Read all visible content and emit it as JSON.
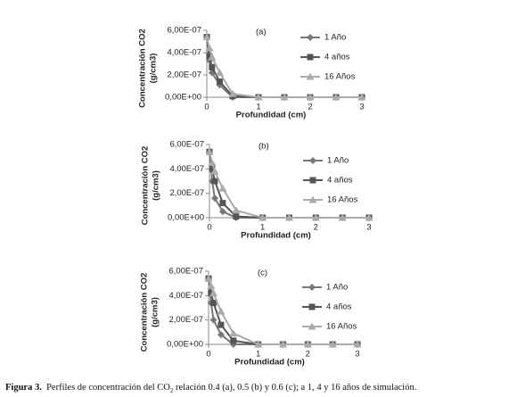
{
  "chart_data": [
    {
      "type": "line",
      "ylabel": "Concentración CO2",
      "ylabel_unit": "(g/cm3)",
      "xlabel": "Profundidad (cm)",
      "annotation": "(a)",
      "x": [
        0,
        0.05,
        0.1,
        0.25,
        0.5,
        1,
        1.5,
        2,
        2.5,
        3
      ],
      "xlim": [
        0,
        3
      ],
      "xticks": [
        0,
        1,
        2,
        3
      ],
      "ylim": [
        0,
        6e-07
      ],
      "yticks": [
        {
          "value": 0,
          "label": "0,00E+00"
        },
        {
          "value": 2e-07,
          "label": "2,00E-07"
        },
        {
          "value": 4e-07,
          "label": "4,00E-07"
        },
        {
          "value": 6e-07,
          "label": "6,00E-07"
        }
      ],
      "series": [
        {
          "name": "1 Año",
          "color": "#777777",
          "marker": "diamond",
          "values": [
            5.4e-07,
            3.3e-07,
            2.2e-07,
            1.1e-07,
            0,
            0,
            0,
            0,
            0,
            0
          ]
        },
        {
          "name": "4 años",
          "color": "#555555",
          "marker": "square",
          "values": [
            5.4e-07,
            3.7e-07,
            2.7e-07,
            1.4e-07,
            1e-08,
            0,
            0,
            0,
            0,
            0
          ]
        },
        {
          "name": "16 Años",
          "color": "#aaaaaa",
          "marker": "triangle",
          "values": [
            5.4e-07,
            4.4e-07,
            3.6e-07,
            2.2e-07,
            3e-08,
            0,
            0,
            0,
            0,
            0
          ]
        }
      ]
    },
    {
      "type": "line",
      "ylabel": "Concentración CO2",
      "ylabel_unit": "(g/cm3)",
      "xlabel": "Profundidad (cm)",
      "annotation": "(b)",
      "x": [
        0,
        0.05,
        0.1,
        0.25,
        0.5,
        1,
        1.5,
        2,
        2.5,
        3
      ],
      "xlim": [
        0,
        3
      ],
      "xticks": [
        0,
        1,
        2,
        3
      ],
      "ylim": [
        0,
        6e-07
      ],
      "yticks": [
        {
          "value": 0,
          "label": "0,00E+00"
        },
        {
          "value": 2e-07,
          "label": "2,00E-07"
        },
        {
          "value": 4e-07,
          "label": "4,00E-07"
        },
        {
          "value": 6e-07,
          "label": "6,00E-07"
        }
      ],
      "series": [
        {
          "name": "1 Año",
          "color": "#777777",
          "marker": "diamond",
          "values": [
            5.4e-07,
            3e-07,
            1.6e-07,
            5e-08,
            0,
            0,
            0,
            0,
            0,
            0
          ]
        },
        {
          "name": "4 años",
          "color": "#555555",
          "marker": "square",
          "values": [
            5.4e-07,
            4e-07,
            3e-07,
            1.2e-07,
            1e-08,
            0,
            0,
            0,
            0,
            0
          ]
        },
        {
          "name": "16 Años",
          "color": "#aaaaaa",
          "marker": "triangle",
          "values": [
            5.4e-07,
            4.5e-07,
            3.8e-07,
            2.4e-07,
            6e-08,
            0,
            0,
            0,
            0,
            0
          ]
        }
      ]
    },
    {
      "type": "line",
      "ylabel": "Concentración CO2",
      "ylabel_unit": "(g/cm3)",
      "xlabel": "Profundidad (cm)",
      "annotation": "(c)",
      "x": [
        0,
        0.05,
        0.1,
        0.25,
        0.5,
        1,
        1.5,
        2,
        2.5,
        3
      ],
      "xlim": [
        0,
        3
      ],
      "xticks": [
        0,
        1,
        2,
        3
      ],
      "ylim": [
        0,
        6e-07
      ],
      "yticks": [
        {
          "value": 0,
          "label": "0,00E+00"
        },
        {
          "value": 2e-07,
          "label": "2,00E-07"
        },
        {
          "value": 4e-07,
          "label": "4,00E-07"
        },
        {
          "value": 6e-07,
          "label": "6,00E-07"
        }
      ],
      "series": [
        {
          "name": "1 Año",
          "color": "#777777",
          "marker": "diamond",
          "values": [
            5.4e-07,
            3.4e-07,
            2e-07,
            8e-08,
            0,
            0,
            0,
            0,
            0,
            0
          ]
        },
        {
          "name": "4 años",
          "color": "#555555",
          "marker": "square",
          "values": [
            5.4e-07,
            4.2e-07,
            3.4e-07,
            1.6e-07,
            3e-08,
            0,
            0,
            0,
            0,
            0
          ]
        },
        {
          "name": "16 Años",
          "color": "#aaaaaa",
          "marker": "triangle",
          "values": [
            5.4e-07,
            4.8e-07,
            4.2e-07,
            2.7e-07,
            9e-08,
            0,
            0,
            0,
            0,
            0
          ]
        }
      ]
    }
  ],
  "caption": {
    "label": "Figura 3.",
    "text": "Perfiles de concentración del CO",
    "sub": "2",
    "rest": " relación 0.4 (a), 0.5 (b) y 0.6 (c);  a 1, 4 y 16 años de simulación."
  }
}
